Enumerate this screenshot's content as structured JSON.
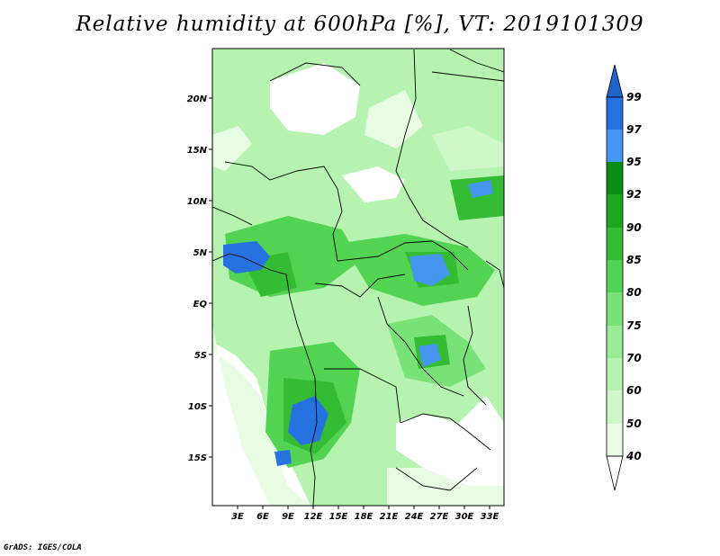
{
  "title": "Relative humidity at 600hPa [%], VT: 2019101309",
  "credit": "GrADS: IGES/COLA",
  "map": {
    "lat_labels": [
      "20N",
      "15N",
      "10N",
      "5N",
      "EQ",
      "5S",
      "10S",
      "15S"
    ],
    "lon_labels": [
      "3E",
      "6E",
      "9E",
      "12E",
      "15E",
      "18E",
      "21E",
      "24E",
      "27E",
      "30E",
      "33E"
    ]
  },
  "colorbar": {
    "levels": [
      "99",
      "97",
      "95",
      "92",
      "90",
      "85",
      "80",
      "75",
      "70",
      "60",
      "50",
      "40"
    ],
    "colors": {
      "above_99": "#1f64c8",
      "97-99": "#2672e0",
      "95-97": "#4696f0",
      "92-95": "#0b8c12",
      "90-92": "#1ea620",
      "85-90": "#34bc34",
      "80-85": "#52d452",
      "75-80": "#78e278",
      "70-75": "#9aeb96",
      "60-70": "#b6f2b0",
      "50-60": "#d0f7ca",
      "40-50": "#e8fce4",
      "below_40": "#ffffff"
    }
  }
}
